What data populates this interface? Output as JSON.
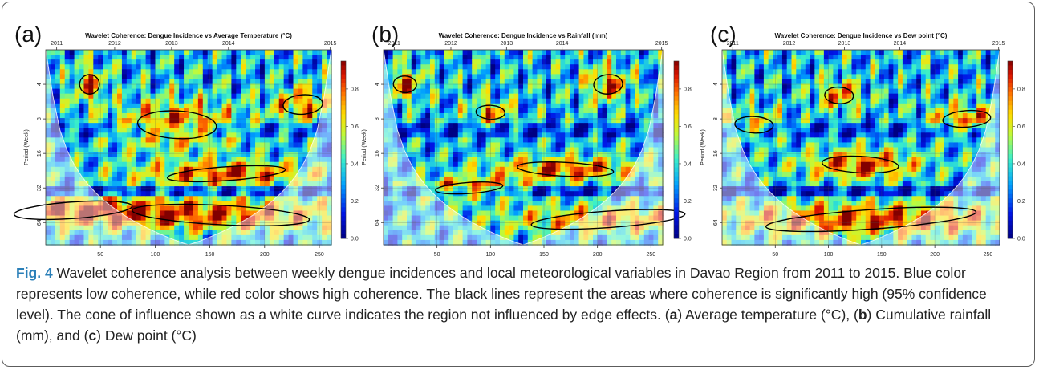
{
  "chart_data": [
    {
      "type": "heatmap",
      "panel_label": "(a)",
      "title": "Wavelet Coherence: Dengue Incidence vs Average Temperature (°C)",
      "xlabel": "Epidemiology Week",
      "ylabel": "Period (Week)",
      "x_ticks": [
        "50",
        "100",
        "150",
        "200",
        "250"
      ],
      "x_tick_values": [
        50,
        100,
        150,
        200,
        250
      ],
      "top_ticks": [
        "2011",
        "2012",
        "2013",
        "2014",
        "2015"
      ],
      "top_tick_values": [
        10,
        63,
        115,
        167,
        260
      ],
      "y_ticks": [
        "4",
        "8",
        "16",
        "32",
        "64"
      ],
      "y_tick_values": [
        4,
        8,
        16,
        32,
        64
      ],
      "xlim": [
        0,
        261
      ],
      "ylim": [
        2,
        100
      ],
      "y_scale": "log2",
      "colorbar_ticks": [
        "0.0",
        "0.2",
        "0.4",
        "0.6",
        "0.8"
      ],
      "colorbar_values": [
        0,
        0.2,
        0.4,
        0.6,
        0.8
      ],
      "colorbar_range": [
        0,
        0.95
      ],
      "legend_position": "right"
    },
    {
      "type": "heatmap",
      "panel_label": "(b)",
      "title": "Wavelet Coherence: Dengue Incidence vs Rainfall (mm)",
      "xlabel": "Epidemiology Week",
      "ylabel": "Period (Week)",
      "x_ticks": [
        "50",
        "100",
        "150",
        "200",
        "250"
      ],
      "x_tick_values": [
        50,
        100,
        150,
        200,
        250
      ],
      "top_ticks": [
        "2011",
        "2012",
        "2013",
        "2014",
        "2015"
      ],
      "top_tick_values": [
        10,
        63,
        115,
        167,
        260
      ],
      "y_ticks": [
        "4",
        "8",
        "16",
        "32",
        "64"
      ],
      "y_tick_values": [
        4,
        8,
        16,
        32,
        64
      ],
      "xlim": [
        0,
        261
      ],
      "ylim": [
        2,
        100
      ],
      "y_scale": "log2",
      "colorbar_ticks": [
        "0.0",
        "0.2",
        "0.4",
        "0.6",
        "0.8"
      ],
      "colorbar_values": [
        0,
        0.2,
        0.4,
        0.6,
        0.8
      ],
      "colorbar_range": [
        0,
        0.95
      ],
      "legend_position": "right"
    },
    {
      "type": "heatmap",
      "panel_label": "(c)",
      "title": "Wavelet Coherence: Dengue Incidence vs Dew point (°C)",
      "xlabel": "Epidemiology Week",
      "ylabel": "Period (Week)",
      "x_ticks": [
        "50",
        "100",
        "150",
        "200",
        "250"
      ],
      "x_tick_values": [
        50,
        100,
        150,
        200,
        250
      ],
      "top_ticks": [
        "2011",
        "2012",
        "2013",
        "2014",
        "2015"
      ],
      "top_tick_values": [
        10,
        63,
        115,
        167,
        260
      ],
      "y_ticks": [
        "4",
        "8",
        "16",
        "32",
        "64"
      ],
      "y_tick_values": [
        4,
        8,
        16,
        32,
        64
      ],
      "xlim": [
        0,
        261
      ],
      "ylim": [
        2,
        100
      ],
      "y_scale": "log2",
      "colorbar_ticks": [
        "0.0",
        "0.2",
        "0.4",
        "0.6",
        "0.8"
      ],
      "colorbar_values": [
        0,
        0.2,
        0.4,
        0.6,
        0.8
      ],
      "colorbar_range": [
        0,
        0.95
      ],
      "legend_position": "right"
    }
  ],
  "colors": {
    "low_coherence": "#0b1a8c",
    "high_coherence": "#8b0000",
    "significance_contour": "#000000",
    "frame_border": "#5c5c5c",
    "caption_label": "#2a7fb8"
  },
  "caption": {
    "label": "Fig. 4",
    "text": "Wavelet coherence analysis between weekly dengue incidences and local meteorological variables in Davao Region from 2011 to 2015. Blue color represents low coherence, while red color shows high coherence. The black lines represent the areas where coherence is significantly high (95% confidence level). The cone of influence shown as a white curve indicates the region not influenced by edge effects. (",
    "a_letter": "a",
    "a_text": ") Average temperature (°C), (",
    "b_letter": "b",
    "b_text": ") Cumulative rainfall (mm), and (",
    "c_letter": "c",
    "c_text": ") Dew point (°C)"
  }
}
